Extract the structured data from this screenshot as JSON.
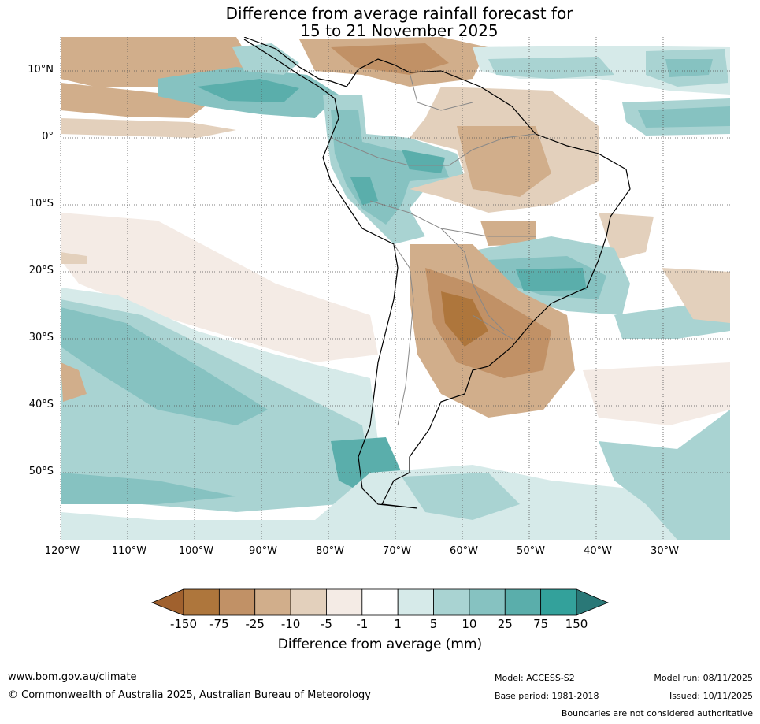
{
  "title": {
    "line1": "Difference from average rainfall forecast for",
    "line2": "15 to 21 November 2025"
  },
  "map": {
    "lat_labels": [
      "10°N",
      "0°",
      "10°S",
      "20°S",
      "30°S",
      "40°S",
      "50°S"
    ],
    "lon_labels": [
      "120°W",
      "110°W",
      "100°W",
      "90°W",
      "80°W",
      "70°W",
      "60°W",
      "50°W",
      "40°W",
      "30°W"
    ],
    "extent": {
      "lon_min": -120,
      "lon_max": -20,
      "lat_min": -60,
      "lat_max": 15
    }
  },
  "colorbar": {
    "label": "Difference from average (mm)",
    "ticks": [
      "-150",
      "-75",
      "-25",
      "-10",
      "-5",
      "-1",
      "1",
      "5",
      "10",
      "25",
      "75",
      "150"
    ],
    "bin_colors": [
      "#ae763c",
      "#c19166",
      "#d1ae8b",
      "#e3d0bc",
      "#f4ebe5",
      "#ffffff",
      "#d6eae9",
      "#a9d3d2",
      "#86c2c1",
      "#5aaeab",
      "#33a19b"
    ],
    "extend_low_color": "#a0612e",
    "extend_high_color": "#2a7877"
  },
  "footer": {
    "website": "www.bom.gov.au/climate",
    "copyright": "© Commonwealth of Australia 2025, Australian Bureau of Meteorology",
    "model": "Model: ACCESS-S2",
    "base_period": "Base period: 1981-2018",
    "model_run": "Model run: 08/11/2025",
    "issued": "Issued: 10/11/2025",
    "disclaimer": "Boundaries are not considered authoritative"
  }
}
